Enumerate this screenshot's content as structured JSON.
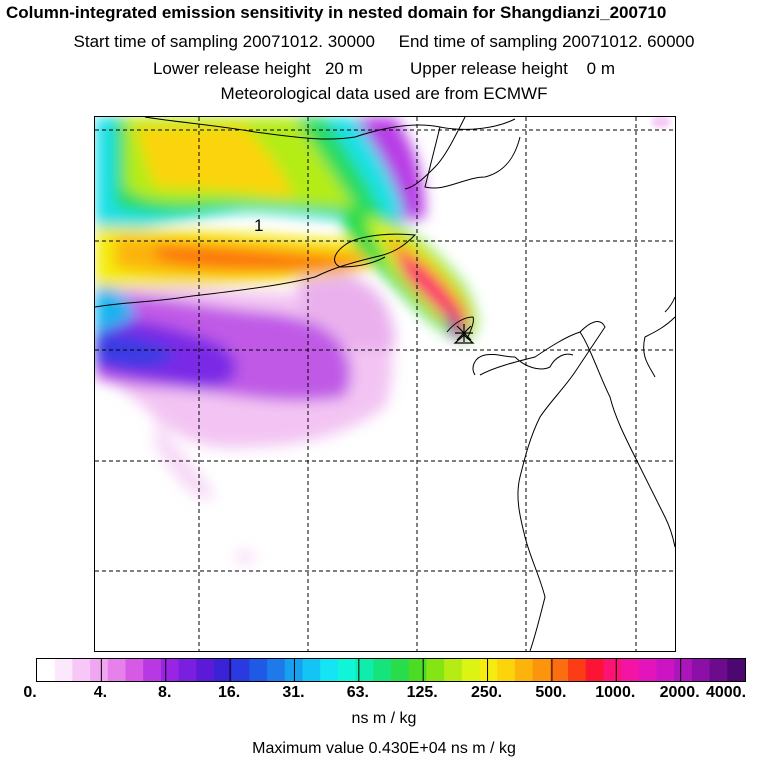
{
  "header": {
    "title": "Column-integrated emission sensitivity in nested domain for Shangdianzi_200710",
    "sampling": "Start time of sampling 20071012. 30000     End time of sampling 20071012. 60000",
    "release": "Lower release height   20 m          Upper release height    0 m",
    "met": "Meteorological data used are from ECMWF"
  },
  "map": {
    "plume_label": "1",
    "receptor_marker": "receptor-star",
    "gridlines": "dashed"
  },
  "colorbar": {
    "tick_labels": [
      "0.",
      "4.",
      "8.",
      "16.",
      "31.",
      "63.",
      "125.",
      "250.",
      "500.",
      "1000.",
      "2000.",
      "4000."
    ],
    "colors": [
      "#ffffff",
      "#fce8fc",
      "#f7c8f7",
      "#f0a6f0",
      "#e680ea",
      "#d65ae6",
      "#b838e4",
      "#9a24e4",
      "#7a1ee0",
      "#5a1ad8",
      "#3a22d6",
      "#2a3ae0",
      "#1e5ae6",
      "#1e7aea",
      "#16a0f0",
      "#14c4f4",
      "#14e4f4",
      "#10f4d8",
      "#10ecac",
      "#14e47a",
      "#28dc4c",
      "#4cdc24",
      "#84e414",
      "#b4ec14",
      "#dcf414",
      "#f4ec10",
      "#fcd40c",
      "#fcb40c",
      "#fc940c",
      "#fc6c10",
      "#fc3c14",
      "#fc1434",
      "#fc1474",
      "#f414a4",
      "#e414bc",
      "#cc14c4",
      "#ac14bc",
      "#8c10a8",
      "#6c0c8c",
      "#4c0870"
    ],
    "units": "ns m / kg",
    "maximum": "Maximum value  0.430E+04 ns m / kg"
  }
}
